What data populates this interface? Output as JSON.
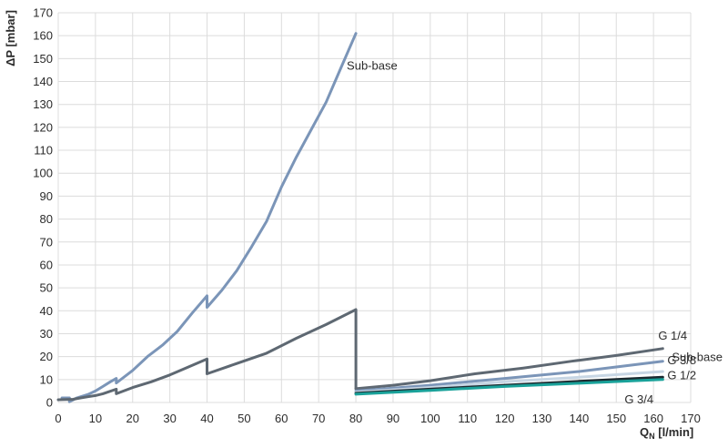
{
  "chart_data": {
    "type": "line",
    "xlim": [
      0,
      170
    ],
    "ylim": [
      0,
      170
    ],
    "x_ticks": [
      0,
      10,
      20,
      30,
      40,
      50,
      60,
      70,
      80,
      90,
      100,
      110,
      120,
      130,
      140,
      150,
      160,
      170
    ],
    "y_ticks": [
      0,
      10,
      20,
      30,
      40,
      50,
      60,
      70,
      80,
      90,
      100,
      110,
      120,
      130,
      140,
      150,
      160,
      170
    ],
    "grid": true,
    "legend": "none",
    "ylabel": "ΔP [mbar]",
    "xlabel_main": "Q",
    "xlabel_sub": "N",
    "xlabel_unit": " [l/min]",
    "series": [
      {
        "name": "Sub-base",
        "label_text": "Sub-base",
        "color": "#7b95b8",
        "points": [
          [
            1,
            2
          ],
          [
            3,
            2
          ],
          [
            3,
            0.3
          ],
          [
            5,
            2
          ],
          [
            8,
            3.5
          ],
          [
            10,
            5
          ],
          [
            12,
            7
          ],
          [
            14,
            9
          ],
          [
            15.6,
            10.5
          ],
          [
            15.6,
            8.5
          ],
          [
            20,
            14
          ],
          [
            24,
            20
          ],
          [
            28,
            25
          ],
          [
            32,
            31
          ],
          [
            36,
            39
          ],
          [
            40,
            46.5
          ],
          [
            40,
            41.5
          ],
          [
            44,
            49
          ],
          [
            48,
            57.5
          ],
          [
            52,
            68
          ],
          [
            56,
            79
          ],
          [
            60,
            94
          ],
          [
            64,
            107
          ],
          [
            68,
            119
          ],
          [
            72,
            131
          ],
          [
            76,
            146
          ],
          [
            80,
            161
          ]
        ]
      },
      {
        "name": "",
        "label_text": "",
        "color": "#5e6872",
        "points": [
          [
            0,
            1.2
          ],
          [
            4,
            1.4
          ],
          [
            6,
            2
          ],
          [
            8,
            2.5
          ],
          [
            10,
            3
          ],
          [
            12,
            3.8
          ],
          [
            15.6,
            5.8
          ],
          [
            15.6,
            3.8
          ],
          [
            20,
            6.5
          ],
          [
            25,
            9
          ],
          [
            30,
            12
          ],
          [
            35,
            15.5
          ],
          [
            40,
            19
          ],
          [
            40,
            12.5
          ],
          [
            48,
            17
          ],
          [
            56,
            21.5
          ],
          [
            64,
            28
          ],
          [
            72,
            34
          ],
          [
            80,
            40.5
          ],
          [
            80,
            6
          ]
        ]
      },
      {
        "name": "G 1/4",
        "label_text": "G 1/4",
        "color": "#5e6872",
        "points": [
          [
            80,
            6
          ],
          [
            90,
            7.5
          ],
          [
            100,
            9.5
          ],
          [
            112,
            12.5
          ],
          [
            125,
            15
          ],
          [
            138,
            18
          ],
          [
            150,
            20.5
          ],
          [
            162.5,
            23.5
          ]
        ]
      },
      {
        "name": "Sub-base",
        "label_text": "Sub-base",
        "color": "#7b95b8",
        "points": [
          [
            80,
            5
          ],
          [
            100,
            7.5
          ],
          [
            120,
            10.5
          ],
          [
            140,
            13.5
          ],
          [
            162.5,
            18
          ]
        ]
      },
      {
        "name": "G 3/8",
        "label_text": "G 3/8",
        "color": "#c7d6e4",
        "points": [
          [
            80,
            4.5
          ],
          [
            100,
            6.5
          ],
          [
            120,
            9
          ],
          [
            140,
            11
          ],
          [
            162.5,
            13.5
          ]
        ]
      },
      {
        "name": "G 1/2",
        "label_text": "G 1/2",
        "color": "#1b2a30",
        "points": [
          [
            80,
            4
          ],
          [
            100,
            5.8
          ],
          [
            120,
            7.5
          ],
          [
            140,
            9.2
          ],
          [
            162.5,
            11
          ]
        ]
      },
      {
        "name": "G 3/4",
        "label_text": "G 3/4",
        "color": "#1aa29a",
        "points": [
          [
            80,
            3.6
          ],
          [
            100,
            5.3
          ],
          [
            120,
            7
          ],
          [
            140,
            8.4
          ],
          [
            162.5,
            10
          ]
        ]
      }
    ]
  }
}
